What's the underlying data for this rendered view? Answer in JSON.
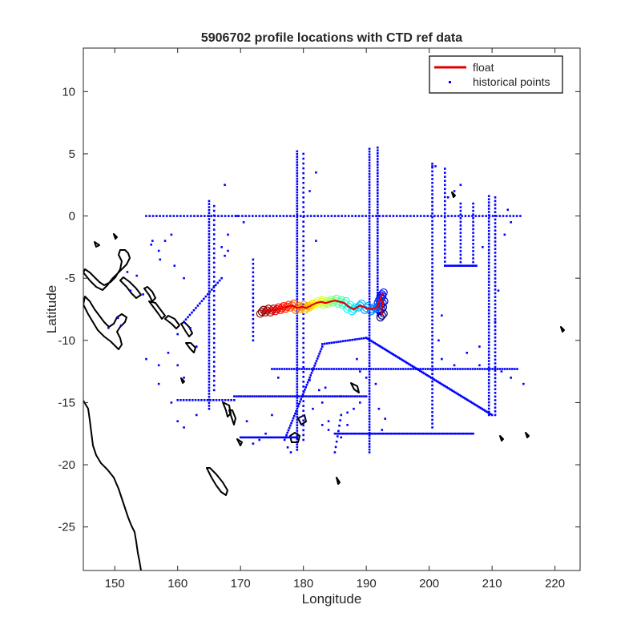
{
  "chart_data": {
    "type": "scatter",
    "title": "5906702 profile locations with CTD ref data",
    "xlabel": "Longitude",
    "ylabel": "Latitude",
    "xlim": [
      145,
      224
    ],
    "ylim": [
      -28.5,
      13.5
    ],
    "xticks": [
      150,
      160,
      170,
      180,
      190,
      200,
      210,
      220
    ],
    "yticks": [
      10,
      5,
      0,
      -5,
      -10,
      -15,
      -20,
      -25
    ],
    "grid": false,
    "legend": {
      "placement": "top-right",
      "entries": [
        {
          "label": "float",
          "color": "#e00000",
          "marker": "line"
        },
        {
          "label": "historical points",
          "color": "#0000ff",
          "marker": "dot"
        }
      ]
    },
    "series": [
      {
        "name": "float",
        "color": "#e00000",
        "points": [
          [
            192.5,
            -8.0
          ],
          [
            192.4,
            -7.5
          ],
          [
            192.6,
            -7.0
          ],
          [
            192.3,
            -6.6
          ],
          [
            192.5,
            -6.3
          ],
          [
            192.1,
            -6.8
          ],
          [
            191.8,
            -7.3
          ],
          [
            191.0,
            -7.5
          ],
          [
            190.0,
            -7.4
          ],
          [
            189.0,
            -7.2
          ],
          [
            188.0,
            -7.5
          ],
          [
            187.2,
            -7.3
          ],
          [
            186.5,
            -7.0
          ],
          [
            185.8,
            -6.9
          ],
          [
            185.0,
            -6.8
          ],
          [
            184.2,
            -6.9
          ],
          [
            183.5,
            -7.0
          ],
          [
            182.8,
            -6.9
          ],
          [
            182.0,
            -7.0
          ],
          [
            181.2,
            -7.2
          ],
          [
            180.5,
            -7.4
          ],
          [
            179.8,
            -7.3
          ],
          [
            179.0,
            -7.4
          ],
          [
            178.2,
            -7.2
          ],
          [
            177.4,
            -7.3
          ],
          [
            176.6,
            -7.4
          ],
          [
            175.8,
            -7.5
          ],
          [
            175.0,
            -7.6
          ],
          [
            174.2,
            -7.6
          ],
          [
            173.4,
            -7.7
          ]
        ]
      },
      {
        "name": "historical points",
        "color": "#0000ff",
        "lines": [
          {
            "from": [
              155.0,
              0.0
            ],
            "to": [
              214.5,
              0.0
            ],
            "n": 110
          },
          {
            "from": [
              179.0,
              5.2
            ],
            "to": [
              179.0,
              -18.8
            ],
            "n": 110
          },
          {
            "from": [
              180.0,
              5.0
            ],
            "to": [
              180.0,
              -18.0
            ],
            "n": 60
          },
          {
            "from": [
              190.5,
              5.4
            ],
            "to": [
              190.5,
              -19.0
            ],
            "n": 110
          },
          {
            "from": [
              191.8,
              5.5
            ],
            "to": [
              191.8,
              -8.0
            ],
            "n": 60
          },
          {
            "from": [
              165.0,
              1.2
            ],
            "to": [
              165.0,
              -15.5
            ],
            "n": 70
          },
          {
            "from": [
              165.8,
              0.8
            ],
            "to": [
              165.8,
              -14.0
            ],
            "n": 40
          },
          {
            "from": [
              209.5,
              1.6
            ],
            "to": [
              209.5,
              -16.0
            ],
            "n": 70
          },
          {
            "from": [
              210.5,
              1.5
            ],
            "to": [
              210.5,
              -16.0
            ],
            "n": 60
          },
          {
            "from": [
              200.5,
              4.2
            ],
            "to": [
              200.5,
              -17.0
            ],
            "n": 70
          },
          {
            "from": [
              202.5,
              3.8
            ],
            "to": [
              202.5,
              -4.0
            ],
            "n": 25
          },
          {
            "from": [
              205.0,
              1.0
            ],
            "to": [
              205.0,
              -4.0
            ],
            "n": 18
          },
          {
            "from": [
              207.0,
              1.0
            ],
            "to": [
              207.0,
              -4.0
            ],
            "n": 18
          },
          {
            "from": [
              202.5,
              -4.0
            ],
            "to": [
              207.5,
              -4.0
            ],
            "n": 18
          },
          {
            "from": [
              185.0,
              -17.5
            ],
            "to": [
              207.0,
              -17.5
            ],
            "n": 70
          },
          {
            "from": [
              170.0,
              -17.8
            ],
            "to": [
              179.0,
              -17.8
            ],
            "n": 30
          },
          {
            "from": [
              169.0,
              -14.5
            ],
            "to": [
              190.0,
              -14.5
            ],
            "n": 60
          },
          {
            "from": [
              175.0,
              -12.3
            ],
            "to": [
              214.0,
              -12.3
            ],
            "n": 100
          },
          {
            "from": [
              160.0,
              -14.8
            ],
            "to": [
              169.0,
              -14.8
            ],
            "n": 20
          },
          {
            "from": [
              183.0,
              -10.3
            ],
            "to": [
              190.0,
              -9.8
            ],
            "n": 20
          },
          {
            "from": [
              190.0,
              -9.8
            ],
            "to": [
              210.0,
              -16.0
            ],
            "n": 90
          },
          {
            "from": [
              177.0,
              -18.0
            ],
            "to": [
              183.0,
              -10.5
            ],
            "n": 40
          },
          {
            "from": [
              161.0,
              -8.5
            ],
            "to": [
              167.0,
              -5.0
            ],
            "n": 20
          },
          {
            "from": [
              172.0,
              -3.5
            ],
            "to": [
              172.0,
              -10.0
            ],
            "n": 20
          },
          {
            "from": [
              186.0,
              -16.0
            ],
            "to": [
              185.0,
              -19.0
            ],
            "n": 8
          }
        ],
        "points": [
          [
            149.0,
            -9.0
          ],
          [
            150.5,
            -8.2
          ],
          [
            151.0,
            -8.8
          ],
          [
            152.0,
            -4.5
          ],
          [
            152.5,
            -6.0
          ],
          [
            153.5,
            -4.8
          ],
          [
            154.5,
            -6.3
          ],
          [
            155.8,
            -2.3
          ],
          [
            156.0,
            -2.0
          ],
          [
            157.0,
            -2.8
          ],
          [
            157.2,
            -3.5
          ],
          [
            158.0,
            -2.0
          ],
          [
            159.0,
            -1.5
          ],
          [
            159.5,
            -4.0
          ],
          [
            160.0,
            -9.5
          ],
          [
            161.0,
            -5.0
          ],
          [
            162.0,
            -9.0
          ],
          [
            163.0,
            -10.5
          ],
          [
            155.0,
            -11.5
          ],
          [
            157.0,
            -12.0
          ],
          [
            158.5,
            -11.0
          ],
          [
            160.0,
            -12.0
          ],
          [
            161.0,
            -13.0
          ],
          [
            167.0,
            -2.5
          ],
          [
            168.0,
            -2.8
          ],
          [
            167.5,
            2.5
          ],
          [
            168.0,
            -1.5
          ],
          [
            167.5,
            -3.2
          ],
          [
            176.0,
            -13.0
          ],
          [
            175.0,
            -16.0
          ],
          [
            174.0,
            -17.5
          ],
          [
            173.0,
            -18.0
          ],
          [
            172.0,
            -18.3
          ],
          [
            181.5,
            -15.5
          ],
          [
            183.0,
            -15.0
          ],
          [
            184.0,
            -16.5
          ],
          [
            186.0,
            -14.5
          ],
          [
            187.0,
            -15.8
          ],
          [
            188.0,
            -15.5
          ],
          [
            189.0,
            -15.0
          ],
          [
            192.0,
            -15.5
          ],
          [
            193.0,
            -16.3
          ],
          [
            192.5,
            -17.2
          ],
          [
            181.0,
            -13.2
          ],
          [
            182.5,
            -14.0
          ],
          [
            183.5,
            -13.8
          ],
          [
            187.0,
            -16.8
          ],
          [
            186.0,
            -17.8
          ],
          [
            182.0,
            3.5
          ],
          [
            181.0,
            2.0
          ],
          [
            182.0,
            -2.0
          ],
          [
            169.5,
            0.0
          ],
          [
            170.5,
            -0.5
          ],
          [
            157.0,
            -13.5
          ],
          [
            159.0,
            -15.0
          ],
          [
            160.0,
            -16.5
          ],
          [
            161.0,
            -17.0
          ],
          [
            163.0,
            -16.0
          ],
          [
            202.0,
            -8.0
          ],
          [
            201.5,
            -10.0
          ],
          [
            202.0,
            -11.5
          ],
          [
            215.0,
            -13.5
          ],
          [
            213.0,
            -13.0
          ],
          [
            211.5,
            -12.5
          ],
          [
            208.0,
            -12.0
          ],
          [
            210.5,
            -8.5
          ],
          [
            211.0,
            -6.0
          ],
          [
            208.5,
            -2.5
          ],
          [
            212.0,
            -1.5
          ],
          [
            213.0,
            -0.5
          ],
          [
            212.5,
            0.5
          ],
          [
            203.0,
            1.5
          ],
          [
            204.0,
            2.0
          ],
          [
            205.0,
            2.5
          ],
          [
            201.0,
            4.0
          ],
          [
            200.5,
            4.0
          ],
          [
            208.0,
            -10.5
          ],
          [
            206.0,
            -11.0
          ],
          [
            204.0,
            -12.0
          ],
          [
            178.0,
            -19.0
          ],
          [
            177.5,
            -18.6
          ],
          [
            184.0,
            -17.2
          ],
          [
            183.0,
            -16.8
          ],
          [
            188.5,
            -11.5
          ],
          [
            189.0,
            -12.5
          ],
          [
            190.0,
            -13.0
          ],
          [
            191.5,
            -13.5
          ],
          [
            171.0,
            -16.5
          ]
        ]
      }
    ]
  }
}
